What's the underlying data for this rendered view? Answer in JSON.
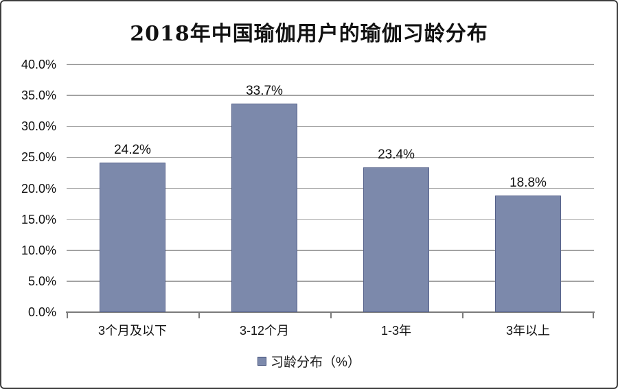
{
  "chart_data": {
    "type": "bar",
    "title": "2018年中国瑜伽用户的瑜伽习龄分布",
    "categories": [
      "3个月及以下",
      "3-12个月",
      "1-3年",
      "3年以上"
    ],
    "values": [
      24.2,
      33.7,
      23.4,
      18.8
    ],
    "value_labels": [
      "24.2%",
      "33.7%",
      "23.4%",
      "18.8%"
    ],
    "xlabel": "",
    "ylabel": "",
    "ylim": [
      0,
      40
    ],
    "ytick_step": 5,
    "ytick_labels": [
      "0.0%",
      "5.0%",
      "10.0%",
      "15.0%",
      "20.0%",
      "25.0%",
      "30.0%",
      "35.0%",
      "40.0%"
    ],
    "grid": true,
    "legend": {
      "label": "习龄分布（%）",
      "position": "bottom"
    },
    "colors": {
      "bar_fill": "#7c89ab",
      "bar_border": "#55618a",
      "gridline": "#a3a3a3",
      "axis_line": "#7a7a7a",
      "text": "#111111",
      "legend_swatch_border": "#3c4a75"
    }
  }
}
